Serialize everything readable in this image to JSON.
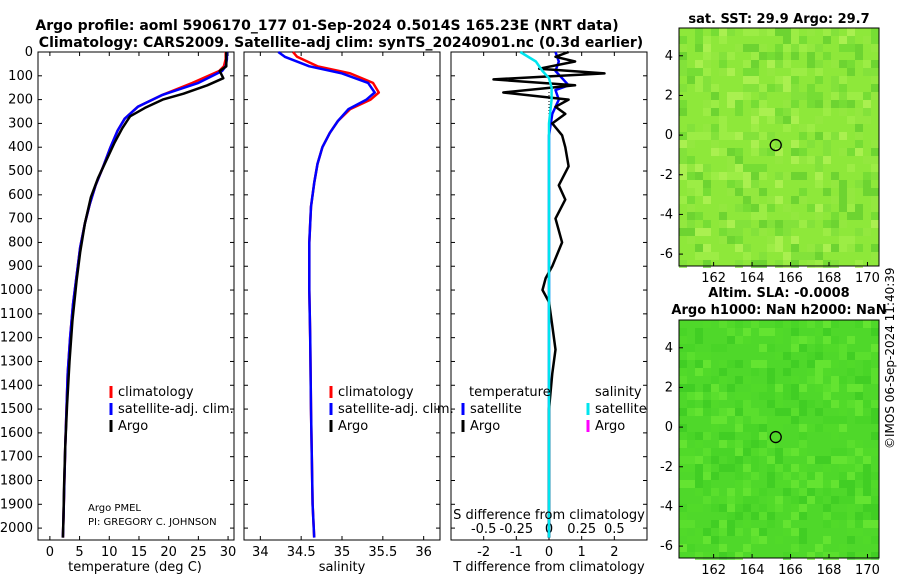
{
  "header": {
    "title_line1": "Argo profile: aoml 5906170_177 01-Sep-2024 0.5014S 165.23E (NRT data)",
    "title_line2": "Climatology: CARS2009. Satellite-adj clim: synTS_20240901.nc (0.3d earlier)"
  },
  "colors": {
    "climatology": "#ff0000",
    "satellite_adj": "#0000ff",
    "argo": "#000000",
    "s_satellite": "#00e5ee",
    "s_argo": "#ff00ff",
    "sst_base": "#8ee83a",
    "sla_base": "#4fd82a"
  },
  "chart_data": [
    {
      "type": "line",
      "name": "temperature-profile",
      "xlabel": "temperature (deg C)",
      "ylabel": "",
      "xlim": [
        -2,
        31
      ],
      "ylim": [
        2050,
        0
      ],
      "xticks": [
        0,
        5,
        10,
        15,
        20,
        25,
        30
      ],
      "yticks": [
        0,
        100,
        200,
        300,
        400,
        500,
        600,
        700,
        800,
        900,
        1000,
        1100,
        1200,
        1300,
        1400,
        1500,
        1600,
        1700,
        1800,
        1900,
        2000
      ],
      "legend": [
        "climatology",
        "satellite-adj. clim.",
        "Argo"
      ],
      "note": [
        "Argo PMEL",
        "PI: GREGORY C. JOHNSON"
      ],
      "series": [
        {
          "name": "climatology",
          "x": [
            29.6,
            29.6,
            29.3,
            28.5,
            24.0,
            19.0,
            14.8,
            12.6,
            11.4,
            10.2,
            9.0,
            7.7,
            6.7,
            5.9,
            5.1,
            4.5,
            3.9,
            3.4,
            3.0,
            2.8,
            2.6,
            2.45,
            2.35,
            2.25,
            2.2
          ],
          "y": [
            0,
            30,
            60,
            80,
            130,
            180,
            230,
            280,
            330,
            400,
            480,
            560,
            640,
            720,
            820,
            940,
            1060,
            1200,
            1350,
            1500,
            1650,
            1800,
            1900,
            2000,
            2040
          ]
        },
        {
          "name": "satellite-adj. clim.",
          "x": [
            29.8,
            29.8,
            29.6,
            29.0,
            25.0,
            19.0,
            14.8,
            12.6,
            11.4,
            10.2,
            9.0,
            7.7,
            6.7,
            5.9,
            5.1,
            4.5,
            3.9,
            3.4,
            3.0,
            2.8,
            2.6,
            2.45,
            2.35,
            2.25,
            2.2
          ],
          "y": [
            0,
            30,
            60,
            80,
            130,
            180,
            230,
            280,
            330,
            400,
            480,
            560,
            640,
            720,
            820,
            940,
            1060,
            1200,
            1350,
            1500,
            1650,
            1800,
            1900,
            2000,
            2040
          ]
        },
        {
          "name": "Argo",
          "x": [
            29.7,
            29.7,
            28.6,
            29.2,
            26.5,
            22.5,
            19.0,
            16.0,
            13.5,
            12.2,
            10.9,
            9.6,
            8.1,
            6.9,
            5.9,
            5.1,
            4.5,
            3.8,
            3.3,
            2.9,
            2.6,
            2.4,
            2.3,
            2.2
          ],
          "y": [
            0,
            60,
            80,
            110,
            140,
            175,
            200,
            235,
            270,
            320,
            380,
            450,
            530,
            610,
            720,
            840,
            960,
            1130,
            1300,
            1480,
            1650,
            1820,
            1950,
            2040
          ]
        }
      ]
    },
    {
      "type": "line",
      "name": "salinity-profile",
      "xlabel": "salinity",
      "xlim": [
        33.8,
        36.2
      ],
      "ylim": [
        2050,
        0
      ],
      "xticks": [
        34,
        34.5,
        35,
        35.5,
        36
      ],
      "legend": [
        "climatology",
        "satellite-adj. clim.",
        "Argo"
      ],
      "series": [
        {
          "name": "climatology",
          "x": [
            34.4,
            34.45,
            34.7,
            35.1,
            35.38,
            35.45,
            35.35,
            35.1,
            34.95,
            34.85,
            34.76,
            34.7,
            34.66,
            34.62,
            34.6,
            34.6,
            34.61,
            34.62,
            34.63,
            34.64,
            34.66
          ],
          "y": [
            0,
            20,
            60,
            90,
            130,
            170,
            200,
            240,
            290,
            340,
            400,
            470,
            550,
            650,
            800,
            1000,
            1200,
            1500,
            1700,
            1900,
            2040
          ]
        },
        {
          "name": "satellite-adj. clim.",
          "x": [
            34.22,
            34.3,
            34.6,
            35.0,
            35.32,
            35.4,
            35.3,
            35.08,
            34.95,
            34.85,
            34.76,
            34.7,
            34.66,
            34.62,
            34.6,
            34.6,
            34.61,
            34.62,
            34.63,
            34.64,
            34.66
          ],
          "y": [
            0,
            20,
            60,
            90,
            130,
            170,
            200,
            240,
            290,
            340,
            400,
            470,
            550,
            650,
            800,
            1000,
            1200,
            1500,
            1700,
            1900,
            2040
          ]
        }
      ]
    },
    {
      "type": "line",
      "name": "difference-profile",
      "xlabel": "T difference from climatology",
      "x2label": "S difference from climatology",
      "xlim": [
        -3,
        3
      ],
      "x2lim": [
        -0.75,
        0.75
      ],
      "ylim": [
        2050,
        0
      ],
      "xticks": [
        -2,
        -1,
        0,
        1,
        2
      ],
      "x2ticks": [
        -0.5,
        -0.25,
        0,
        0.25,
        0.5
      ],
      "legend_temperature_title": "temperature",
      "legend_salinity_title": "salinity",
      "legend_temperature": [
        "satellite",
        "Argo"
      ],
      "legend_salinity": [
        "satellite",
        "Argo"
      ],
      "series": [
        {
          "name": "temperature satellite",
          "x": [
            0.2,
            0.3,
            0.2,
            0.4,
            0.6,
            0.2,
            0.3,
            0.1,
            0.0,
            0.0,
            0.0,
            0.0,
            0.0,
            0.0,
            0.0
          ],
          "y": [
            0,
            40,
            80,
            110,
            140,
            160,
            200,
            260,
            350,
            500,
            800,
            1200,
            1600,
            1900,
            2040
          ]
        },
        {
          "name": "temperature Argo",
          "x": [
            0.6,
            0.2,
            0.8,
            -0.3,
            1.7,
            -1.7,
            0.8,
            -1.4,
            0.6,
            0.2,
            0.5,
            0.1,
            0.4,
            0.5,
            0.6,
            0.3,
            0.5,
            0.2,
            0.4,
            0.1,
            -0.1,
            -0.2,
            0.0,
            0.1,
            0.2,
            0.1,
            0.0,
            0.0,
            0.0
          ],
          "y": [
            0,
            20,
            40,
            70,
            90,
            115,
            140,
            170,
            200,
            230,
            260,
            300,
            350,
            400,
            480,
            560,
            620,
            700,
            800,
            900,
            950,
            1000,
            1050,
            1150,
            1250,
            1350,
            1500,
            1800,
            2040
          ]
        },
        {
          "name": "salinity satellite",
          "x": [
            -0.22,
            -0.1,
            -0.05,
            0.0,
            0.02,
            0.02,
            0.0,
            0.0,
            0.0,
            0.0,
            0.0
          ],
          "y": [
            0,
            40,
            80,
            110,
            150,
            200,
            300,
            600,
            1000,
            1500,
            2040
          ]
        }
      ]
    },
    {
      "type": "heatmap",
      "name": "sst-map",
      "title": "sat. SST: 29.9 Argo: 29.7",
      "xlim": [
        160.2,
        170.6
      ],
      "ylim": [
        -6.6,
        5.4
      ],
      "xticks": [
        162,
        164,
        166,
        168,
        170
      ],
      "yticks": [
        4,
        2,
        0,
        -2,
        -4,
        -6
      ],
      "float_position": {
        "lon": 165.23,
        "lat": -0.5014
      }
    },
    {
      "type": "heatmap",
      "name": "sla-map",
      "title_line1": "Altim. SLA: -0.0008",
      "title_line2": "Argo h1000: NaN h2000: NaN",
      "xlim": [
        160.2,
        170.6
      ],
      "ylim": [
        -6.6,
        5.4
      ],
      "xticks": [
        162,
        164,
        166,
        168,
        170
      ],
      "yticks": [
        4,
        2,
        0,
        -2,
        -4,
        -6
      ],
      "float_position": {
        "lon": 165.23,
        "lat": -0.5014
      }
    }
  ],
  "credit": "©IMOS 06-Sep-2024 11:40:39"
}
